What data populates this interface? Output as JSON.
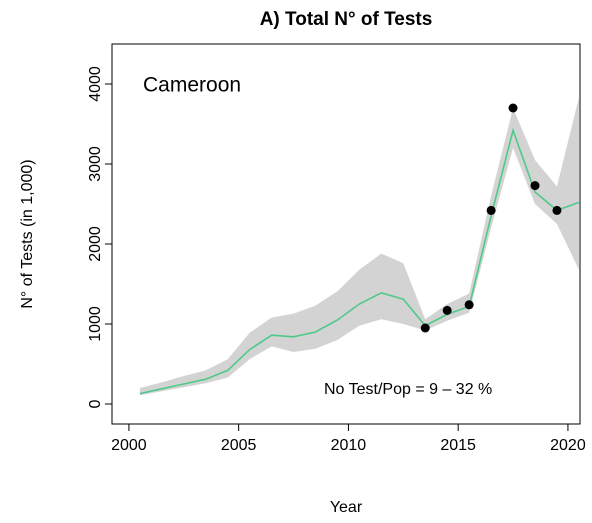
{
  "chart_data": {
    "type": "line",
    "title": "A) Total N° of Tests",
    "xlabel": "Year",
    "ylabel": "N° of Tests (in 1,000)",
    "annotations": [
      "Cameroon",
      "No Test/Pop =  9 – 32 %"
    ],
    "x": [
      2000.5,
      2001.5,
      2002.5,
      2003.5,
      2004.5,
      2005.5,
      2006.5,
      2007.5,
      2008.5,
      2009.5,
      2010.5,
      2011.5,
      2012.5,
      2013.5,
      2014.5,
      2015.5,
      2016.5,
      2017.5,
      2018.5,
      2019.5,
      2020.5
    ],
    "line": {
      "color": "#4fc98a",
      "values": [
        130,
        190,
        250,
        310,
        420,
        680,
        860,
        840,
        900,
        1050,
        1250,
        1390,
        1310,
        980,
        1120,
        1220,
        2350,
        3420,
        2650,
        2420,
        2520
      ]
    },
    "band": {
      "color": "#d3d3d3",
      "lower": [
        110,
        160,
        210,
        260,
        330,
        560,
        720,
        650,
        690,
        800,
        980,
        1060,
        1000,
        920,
        1040,
        1140,
        2200,
        3200,
        2500,
        2250,
        1680
      ],
      "upper": [
        200,
        270,
        350,
        420,
        560,
        890,
        1080,
        1130,
        1230,
        1410,
        1680,
        1880,
        1760,
        1060,
        1250,
        1380,
        2600,
        3700,
        3050,
        2720,
        3830
      ]
    },
    "points": {
      "color": "#000000",
      "x": [
        2013.5,
        2014.5,
        2015.5,
        2016.5,
        2017.5,
        2018.5,
        2019.5
      ],
      "values": [
        950,
        1170,
        1240,
        2420,
        3700,
        2730,
        2420
      ]
    },
    "xlim": [
      1999.23,
      2020.55
    ],
    "xticks": [
      2000,
      2005,
      2010,
      2015,
      2020
    ],
    "ylim": [
      -250,
      4500
    ],
    "yticks": [
      0,
      1000,
      2000,
      3000,
      4000
    ]
  }
}
